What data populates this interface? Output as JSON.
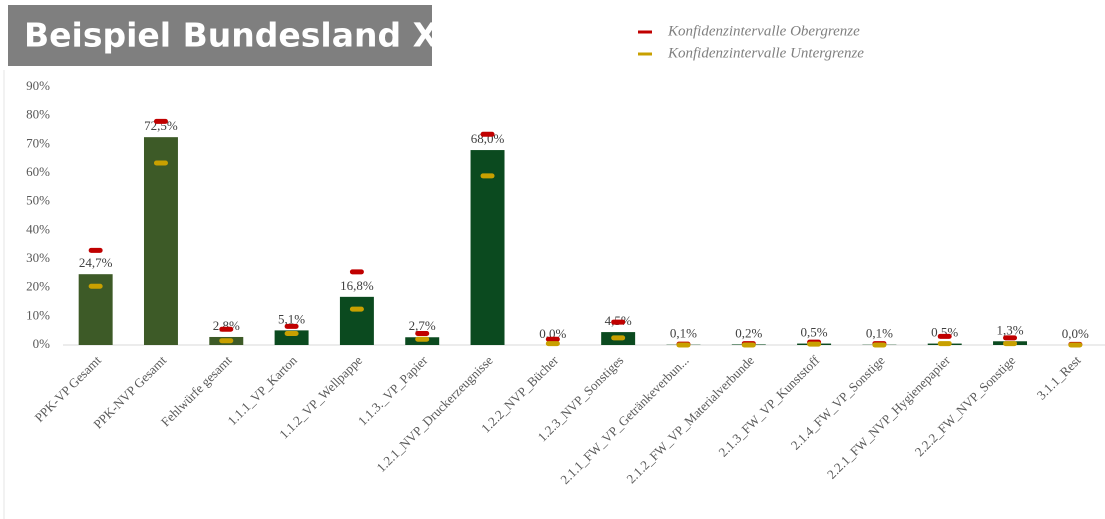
{
  "chart_data": {
    "type": "bar",
    "title": "Beispiel Bundesland X",
    "categories": [
      "PPK-VP Gesamt",
      "PPK-NVP Gesamt",
      "Fehlwürfe gesamt",
      "1.1.1_VP_Karton",
      "1.1.2_VP_Wellpappe",
      "1.1.3._VP_Papier",
      "1.2.1_NVP_Druckerzeugnisse",
      "1.2.2_NVP_Bücher",
      "1.2.3_NVP_Sonstiges",
      "2.1.1_FW_VP_Getränkeverbun...",
      "2.1.2_FW_VP_Materialverbunde",
      "2.1.3_FW_VP_Kunststoff",
      "2.1.4_FW_VP_Sonstige",
      "2.2.1_FW_NVP_Hygienepapier",
      "2.2.2_FW_NVP_Sonstige",
      "3.1.1_Rest"
    ],
    "values": [
      24.7,
      72.5,
      2.8,
      5.1,
      16.8,
      2.7,
      68.0,
      0.0,
      4.5,
      0.1,
      0.2,
      0.5,
      0.1,
      0.5,
      1.3,
      0.0
    ],
    "value_labels": [
      "24,7%",
      "72,5%",
      "2,8%",
      "5,1%",
      "16,8%",
      "2,7%",
      "68,0%",
      "0,0%",
      "4,5%",
      "0,1%",
      "0,2%",
      "0,5%",
      "0,1%",
      "0,5%",
      "1,3%",
      "0,0%"
    ],
    "colors": [
      "#3d5a27",
      "#3d5a27",
      "#3d5a27",
      "#0b4a1f",
      "#0b4a1f",
      "#0b4a1f",
      "#0b4a1f",
      "#0b4a1f",
      "#0b4a1f",
      "#0b4a1f",
      "#0b4a1f",
      "#0b4a1f",
      "#0b4a1f",
      "#0b4a1f",
      "#0b4a1f",
      "#0b4a1f"
    ],
    "series": [
      {
        "name": "Konfidenzintervalle Obergrenze",
        "color": "#c00000",
        "values": [
          33,
          78,
          5.5,
          6.5,
          25.5,
          4,
          73.5,
          2,
          8,
          0.3,
          0.5,
          1,
          0.5,
          3,
          2.5,
          0.2
        ]
      },
      {
        "name": "Konfidenzintervalle Untergrenze",
        "color": "#c8a000",
        "values": [
          20.5,
          63.5,
          1.5,
          4,
          12.5,
          2,
          59,
          0.5,
          2.5,
          0,
          0,
          0.3,
          0,
          0.5,
          0.5,
          0
        ]
      }
    ],
    "ylim": [
      0,
      90
    ],
    "yticks": [
      {
        "value": 0,
        "label": "0%"
      },
      {
        "value": 10,
        "label": "10%"
      },
      {
        "value": 20,
        "label": "20%"
      },
      {
        "value": 30,
        "label": "30%"
      },
      {
        "value": 40,
        "label": "40%"
      },
      {
        "value": 50,
        "label": "50%"
      },
      {
        "value": 60,
        "label": "60%"
      },
      {
        "value": 70,
        "label": "70%"
      },
      {
        "value": 80,
        "label": "80%"
      },
      {
        "value": 90,
        "label": "90%"
      }
    ],
    "grid": false
  }
}
